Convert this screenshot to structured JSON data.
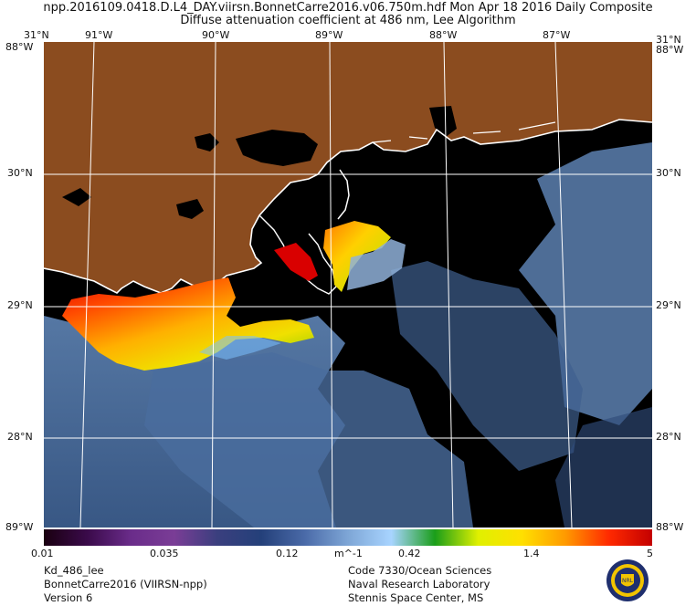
{
  "header": {
    "line1": "npp.2016109.0418.D.L4_DAY.viirsn.BonnetCarre2016.v06.750m.hdf    Mon Apr 18 2016 Daily Composite",
    "line2": "Diffuse attenuation coefficient at 486 nm, Lee Algorithm"
  },
  "map": {
    "top_lon_labels": [
      "91°W",
      "90°W",
      "89°W",
      "88°W",
      "87°W"
    ],
    "left_lat_labels": [
      "30°N",
      "29°N",
      "28°N"
    ],
    "right_lat_labels": [
      "30°N",
      "29°N",
      "28°N"
    ],
    "corner_labels": {
      "top_left": "31°N",
      "left_top": "88°W",
      "right_top": "88°W",
      "top_right": "31°N",
      "bottom_left": "89°W",
      "bottom_right": "88°W"
    },
    "colors": {
      "land": "#8b4c1f",
      "no_data": "#000000",
      "coastline": "#ffffff",
      "graticule": "#ffffff"
    }
  },
  "colorbar": {
    "labels": [
      "0.01",
      "0.035",
      "0.12",
      "m^-1",
      "0.42",
      "1.4",
      "5"
    ],
    "stops": [
      "#1a0010",
      "#3a0a4a",
      "#6a2c8a",
      "#7a3d96",
      "#3a3f7e",
      "#24407a",
      "#4a6aa8",
      "#7ea6d6",
      "#a8d4ff",
      "#1a9e1a",
      "#e0f000",
      "#ffe000",
      "#ff9a00",
      "#ff2a00",
      "#c40000"
    ]
  },
  "footer": {
    "left": [
      "Kd_486_lee",
      "BonnetCarre2016 (VIIRSN-npp)",
      "Version 6"
    ],
    "right": [
      "Code 7330/Ocean Sciences",
      "Naval Research Laboratory",
      "Stennis Space Center, MS"
    ]
  },
  "seal": {
    "icon": "nrl-seal-icon",
    "text": "NRL"
  }
}
